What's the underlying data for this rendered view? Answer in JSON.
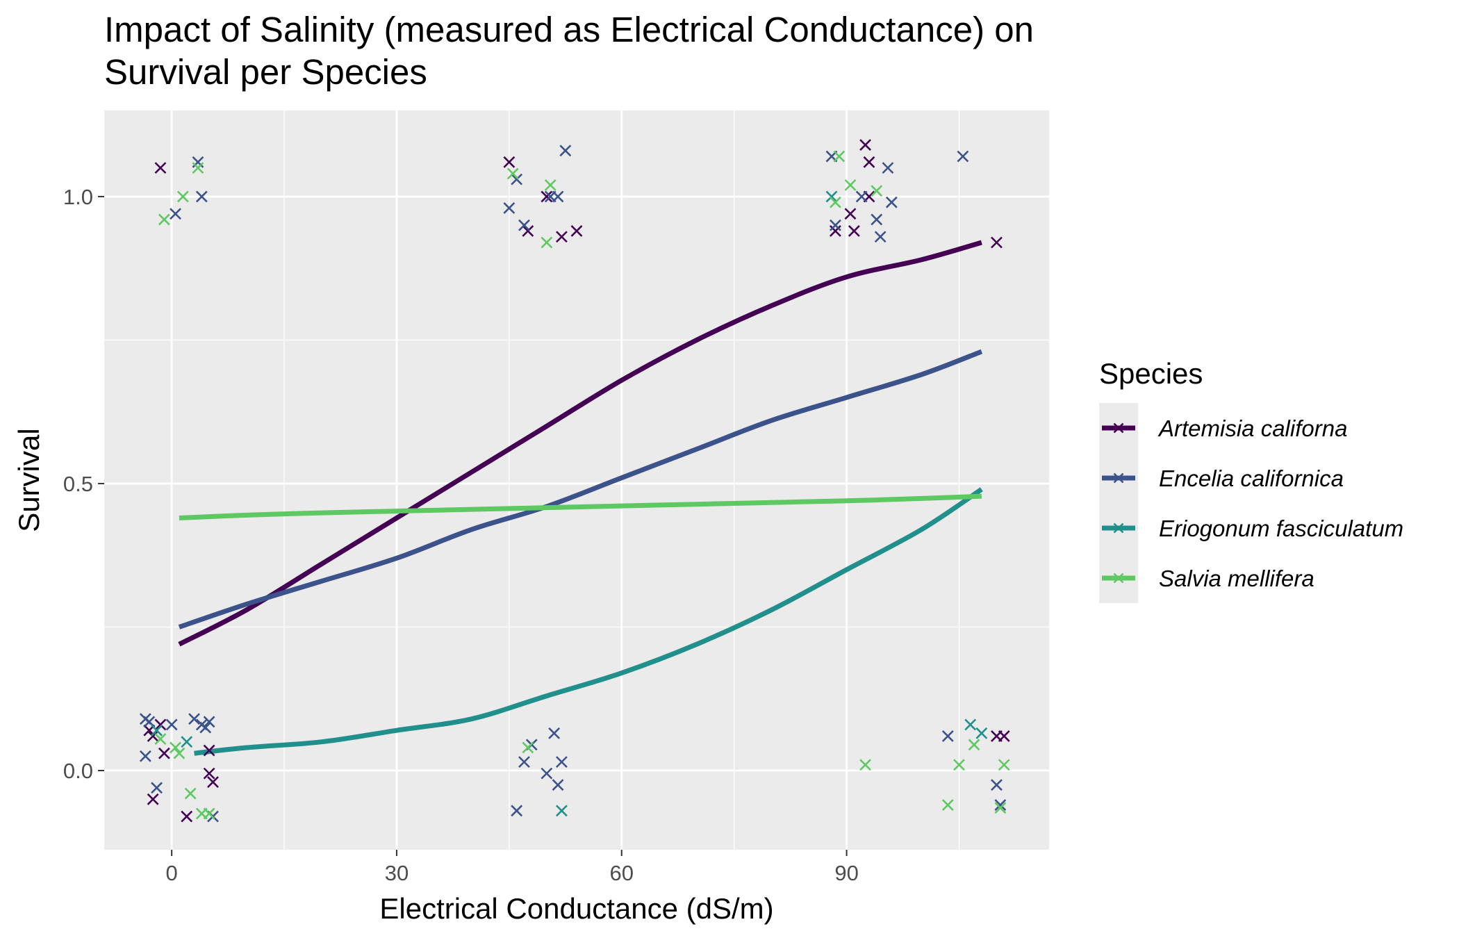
{
  "chart_data": {
    "type": "scatter",
    "title_lines": [
      "Impact of Salinity (measured as Electrical Conductance) on",
      "Survival per Species"
    ],
    "xlabel": "Electrical Conductance (dS/m)",
    "ylabel": "Survival",
    "xlim": [
      -9,
      117
    ],
    "ylim": [
      -0.138,
      1.15
    ],
    "x_ticks": [
      0,
      30,
      60,
      90
    ],
    "x_tick_labels": [
      "0",
      "30",
      "60",
      "90"
    ],
    "y_ticks": [
      0.0,
      0.5,
      1.0
    ],
    "y_tick_labels": [
      "0.0",
      "0.5",
      "1.0"
    ],
    "grid": true,
    "legend_title": "Species",
    "legend_position": "right",
    "series": [
      {
        "name": "Artemisia californa",
        "color": "#440154",
        "curve": {
          "x": [
            1,
            10,
            20,
            30,
            40,
            50,
            60,
            70,
            80,
            90,
            100,
            108
          ],
          "y": [
            0.22,
            0.28,
            0.36,
            0.44,
            0.52,
            0.6,
            0.68,
            0.75,
            0.81,
            0.86,
            0.89,
            0.92
          ]
        },
        "points": [
          {
            "x": -3,
            "y": 0.07
          },
          {
            "x": -2.5,
            "y": 0.06
          },
          {
            "x": -1.5,
            "y": 0.08
          },
          {
            "x": -1,
            "y": 0.03
          },
          {
            "x": -2.5,
            "y": -0.05
          },
          {
            "x": -1.5,
            "y": 1.05
          },
          {
            "x": 2,
            "y": -0.08
          },
          {
            "x": 5,
            "y": 0.035
          },
          {
            "x": 5,
            "y": -0.005
          },
          {
            "x": 5.5,
            "y": -0.02
          },
          {
            "x": 45,
            "y": 1.06
          },
          {
            "x": 50,
            "y": 1.0
          },
          {
            "x": 47.5,
            "y": 0.94
          },
          {
            "x": 52,
            "y": 0.93
          },
          {
            "x": 54,
            "y": 0.94
          },
          {
            "x": 92.5,
            "y": 1.09
          },
          {
            "x": 93,
            "y": 1.06
          },
          {
            "x": 93,
            "y": 1.0
          },
          {
            "x": 90.5,
            "y": 0.97
          },
          {
            "x": 88.5,
            "y": 0.94
          },
          {
            "x": 91,
            "y": 0.94
          },
          {
            "x": 110,
            "y": 0.92
          },
          {
            "x": 110,
            "y": 0.06
          },
          {
            "x": 111,
            "y": 0.06
          }
        ]
      },
      {
        "name": "Encelia californica",
        "color": "#3b528b",
        "curve": {
          "x": [
            1,
            10,
            20,
            30,
            40,
            50,
            60,
            70,
            80,
            90,
            100,
            108
          ],
          "y": [
            0.25,
            0.29,
            0.33,
            0.37,
            0.42,
            0.46,
            0.51,
            0.56,
            0.61,
            0.65,
            0.69,
            0.73
          ]
        },
        "points": [
          {
            "x": -3.5,
            "y": 0.09
          },
          {
            "x": -3,
            "y": 0.085
          },
          {
            "x": -3.5,
            "y": 0.025
          },
          {
            "x": -2,
            "y": -0.03
          },
          {
            "x": 0,
            "y": 0.08
          },
          {
            "x": 0.5,
            "y": 0.97
          },
          {
            "x": 3,
            "y": 0.09
          },
          {
            "x": 4,
            "y": 0.08
          },
          {
            "x": 5,
            "y": 0.085
          },
          {
            "x": 4.5,
            "y": 0.075
          },
          {
            "x": 3.5,
            "y": 1.06
          },
          {
            "x": 4,
            "y": 1.0
          },
          {
            "x": 5.5,
            "y": -0.08
          },
          {
            "x": 45,
            "y": 0.98
          },
          {
            "x": 46,
            "y": 1.03
          },
          {
            "x": 47,
            "y": 0.95
          },
          {
            "x": 50.5,
            "y": 1.0
          },
          {
            "x": 51.5,
            "y": 1.0
          },
          {
            "x": 52.5,
            "y": 1.08
          },
          {
            "x": 47,
            "y": 0.015
          },
          {
            "x": 48,
            "y": 0.045
          },
          {
            "x": 50,
            "y": -0.005
          },
          {
            "x": 51,
            "y": 0.065
          },
          {
            "x": 52,
            "y": 0.015
          },
          {
            "x": 51.5,
            "y": -0.025
          },
          {
            "x": 46,
            "y": -0.07
          },
          {
            "x": 88,
            "y": 1.07
          },
          {
            "x": 88.5,
            "y": 0.95
          },
          {
            "x": 92,
            "y": 1.0
          },
          {
            "x": 94,
            "y": 0.96
          },
          {
            "x": 94.5,
            "y": 0.93
          },
          {
            "x": 95.5,
            "y": 1.05
          },
          {
            "x": 96,
            "y": 0.99
          },
          {
            "x": 103.5,
            "y": 0.06
          },
          {
            "x": 105.5,
            "y": 1.07
          },
          {
            "x": 110,
            "y": -0.025
          },
          {
            "x": 110.5,
            "y": -0.06
          }
        ]
      },
      {
        "name": "Eriogonum fasciculatum",
        "color": "#21908d",
        "curve": {
          "x": [
            3,
            10,
            20,
            30,
            40,
            50,
            60,
            70,
            80,
            90,
            100,
            108
          ],
          "y": [
            0.03,
            0.04,
            0.05,
            0.07,
            0.09,
            0.13,
            0.17,
            0.22,
            0.28,
            0.35,
            0.42,
            0.49
          ]
        },
        "points": [
          {
            "x": -2,
            "y": 0.07
          },
          {
            "x": 2,
            "y": 0.05
          },
          {
            "x": 52,
            "y": -0.07
          },
          {
            "x": 88,
            "y": 1.0
          },
          {
            "x": 106.5,
            "y": 0.08
          },
          {
            "x": 108,
            "y": 0.065
          }
        ]
      },
      {
        "name": "Salvia mellifera",
        "color": "#5ec962",
        "curve": {
          "x": [
            1,
            10,
            20,
            30,
            40,
            50,
            60,
            70,
            80,
            90,
            100,
            108
          ],
          "y": [
            0.44,
            0.445,
            0.449,
            0.452,
            0.455,
            0.458,
            0.461,
            0.464,
            0.467,
            0.47,
            0.474,
            0.478
          ]
        },
        "points": [
          {
            "x": -1,
            "y": 0.96
          },
          {
            "x": 1.5,
            "y": 1.0
          },
          {
            "x": 3.5,
            "y": 1.05
          },
          {
            "x": -1.5,
            "y": 0.055
          },
          {
            "x": 0.5,
            "y": 0.04
          },
          {
            "x": 1,
            "y": 0.03
          },
          {
            "x": 2.5,
            "y": -0.04
          },
          {
            "x": 4,
            "y": -0.075
          },
          {
            "x": 5,
            "y": -0.075
          },
          {
            "x": 45.5,
            "y": 1.04
          },
          {
            "x": 50.5,
            "y": 1.02
          },
          {
            "x": 50,
            "y": 0.92
          },
          {
            "x": 47.5,
            "y": 0.04
          },
          {
            "x": 88.5,
            "y": 0.99
          },
          {
            "x": 89,
            "y": 1.07
          },
          {
            "x": 90.5,
            "y": 1.02
          },
          {
            "x": 94,
            "y": 1.01
          },
          {
            "x": 92.5,
            "y": 0.01
          },
          {
            "x": 103.5,
            "y": -0.06
          },
          {
            "x": 105,
            "y": 0.01
          },
          {
            "x": 107,
            "y": 0.045
          },
          {
            "x": 110.5,
            "y": -0.065
          },
          {
            "x": 111,
            "y": 0.01
          }
        ]
      }
    ]
  }
}
